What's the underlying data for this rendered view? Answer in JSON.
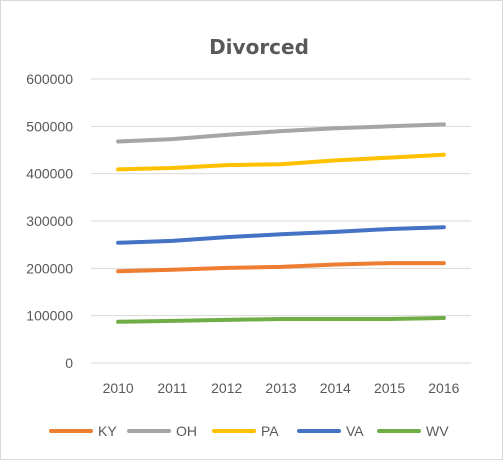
{
  "chart_data": {
    "type": "line",
    "title": "Divorced",
    "xlabel": "",
    "ylabel": "",
    "categories": [
      "2010",
      "2011",
      "2012",
      "2013",
      "2014",
      "2015",
      "2016"
    ],
    "ylim": [
      0,
      600000
    ],
    "yticks": [
      "0",
      "100000",
      "200000",
      "300000",
      "400000",
      "500000",
      "600000"
    ],
    "grid": true,
    "legend_position": "bottom",
    "series": [
      {
        "name": "KY",
        "color": "#ED7D31",
        "values": [
          194000,
          197000,
          201000,
          203000,
          208000,
          211000,
          211000
        ]
      },
      {
        "name": "OH",
        "color": "#A5A5A5",
        "values": [
          468000,
          473000,
          482000,
          490000,
          496000,
          500000,
          504000
        ]
      },
      {
        "name": "PA",
        "color": "#FFC000",
        "values": [
          409000,
          412000,
          418000,
          420000,
          428000,
          434000,
          440000
        ]
      },
      {
        "name": "VA",
        "color": "#4472C4",
        "values": [
          254000,
          258000,
          266000,
          272000,
          277000,
          283000,
          287000
        ]
      },
      {
        "name": "WV",
        "color": "#70AD47",
        "values": [
          87000,
          89000,
          91000,
          93000,
          93000,
          93000,
          95000
        ]
      }
    ]
  }
}
